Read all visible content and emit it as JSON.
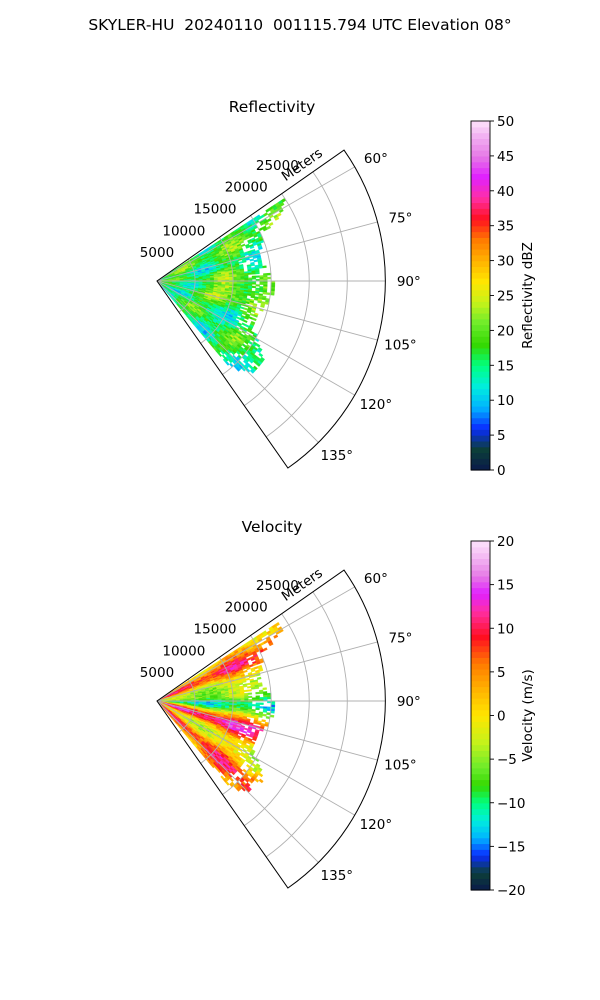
{
  "figure": {
    "suptitle": "SKYLER-HU  20240110  001115.794 UTC Elevation 08°",
    "colors": {
      "background": "#ffffff",
      "grid": "#b0b0b0",
      "frame": "#000000"
    }
  },
  "chart_data": [
    {
      "type": "heatmap",
      "title": "Reflectivity",
      "projection": "polar sector",
      "theta_label": "",
      "r_label": "Meters",
      "r_ticks": [
        5000,
        10000,
        15000,
        20000,
        25000
      ],
      "r_tick_labels": [
        "5000",
        "10000",
        "15000",
        "20000",
        "25000"
      ],
      "r_range": [
        0,
        30000
      ],
      "theta_ticks_deg": [
        60,
        75,
        90,
        105,
        120,
        135
      ],
      "theta_tick_labels": [
        "60°",
        "75°",
        "90°",
        "105°",
        "120°",
        "135°"
      ],
      "theta_range_deg": [
        55,
        145
      ],
      "data_azimuth_range_deg": [
        57,
        140
      ],
      "data_max_range_m": [
        [
          57,
          20000
        ],
        [
          62,
          18000
        ],
        [
          66,
          15000
        ],
        [
          72,
          14200
        ],
        [
          78,
          13500
        ],
        [
          84,
          14200
        ],
        [
          90,
          15000
        ],
        [
          96,
          15200
        ],
        [
          102,
          14600
        ],
        [
          108,
          13800
        ],
        [
          114,
          13600
        ],
        [
          120,
          15000
        ],
        [
          126,
          17000
        ],
        [
          132,
          17500
        ],
        [
          137,
          16000
        ],
        [
          140,
          14000
        ]
      ],
      "field_summary": "mostly 15–25 dBZ (green to yellow), higher 22–28 dBZ band near 90–105° at 8–13 km",
      "colorbar": {
        "label": "Reflectivity dBZ",
        "min": 0,
        "max": 50,
        "ticks": [
          0,
          5,
          10,
          15,
          20,
          25,
          30,
          35,
          40,
          45,
          50
        ],
        "tick_labels": [
          "0",
          "5",
          "10",
          "15",
          "20",
          "25",
          "30",
          "35",
          "40",
          "45",
          "50"
        ],
        "stops": [
          [
            0,
            "#0a1a4a"
          ],
          [
            3,
            "#0c3f38"
          ],
          [
            6,
            "#0a2cff"
          ],
          [
            9,
            "#00b4ff"
          ],
          [
            12,
            "#00eedd"
          ],
          [
            15,
            "#00ff80"
          ],
          [
            18,
            "#35d800"
          ],
          [
            21,
            "#6bec2b"
          ],
          [
            24,
            "#c6f21a"
          ],
          [
            27,
            "#ffe600"
          ],
          [
            30,
            "#ffb300"
          ],
          [
            33,
            "#ff7a00"
          ],
          [
            36,
            "#ff0f20"
          ],
          [
            39,
            "#ff2fa5"
          ],
          [
            42,
            "#e020ff"
          ],
          [
            45,
            "#e67ae6"
          ],
          [
            48,
            "#f2b4f2"
          ],
          [
            50,
            "#fde3fb"
          ]
        ]
      }
    },
    {
      "type": "heatmap",
      "title": "Velocity",
      "projection": "polar sector",
      "theta_label": "",
      "r_label": "Meters",
      "r_ticks": [
        5000,
        10000,
        15000,
        20000,
        25000
      ],
      "r_tick_labels": [
        "5000",
        "10000",
        "15000",
        "20000",
        "25000"
      ],
      "r_range": [
        0,
        30000
      ],
      "theta_ticks_deg": [
        60,
        75,
        90,
        105,
        120,
        135
      ],
      "theta_tick_labels": [
        "60°",
        "75°",
        "90°",
        "105°",
        "120°",
        "135°"
      ],
      "theta_range_deg": [
        55,
        145
      ],
      "data_azimuth_range_deg": [
        57,
        140
      ],
      "data_max_range_m": [
        [
          57,
          20000
        ],
        [
          62,
          18000
        ],
        [
          66,
          15000
        ],
        [
          72,
          14200
        ],
        [
          78,
          13500
        ],
        [
          84,
          14200
        ],
        [
          90,
          15000
        ],
        [
          96,
          15200
        ],
        [
          102,
          14600
        ],
        [
          108,
          13800
        ],
        [
          114,
          13600
        ],
        [
          120,
          15000
        ],
        [
          126,
          17000
        ],
        [
          132,
          17500
        ],
        [
          137,
          16000
        ],
        [
          140,
          14000
        ]
      ],
      "field_summary": "radial bands: about +10 m/s near 62–70°, near 0 to -5 m/s around 75–90°, about -10 m/s near 90–98°, +10 to +15 m/s near 105–112°, about -3 m/s near 115–125°, +10 m/s near 130–138°",
      "colorbar": {
        "label": "Velocity (m/s)",
        "min": -20,
        "max": 20,
        "ticks": [
          -20,
          -15,
          -10,
          -5,
          0,
          5,
          10,
          15,
          20
        ],
        "tick_labels": [
          "−20",
          "−15",
          "−10",
          "−5",
          "0",
          "5",
          "10",
          "15",
          "20"
        ],
        "stops": [
          [
            -20,
            "#0a1a4a"
          ],
          [
            -18,
            "#0c3f38"
          ],
          [
            -16,
            "#0a2cff"
          ],
          [
            -14,
            "#00b4ff"
          ],
          [
            -12,
            "#00eedd"
          ],
          [
            -10,
            "#00ff80"
          ],
          [
            -8,
            "#35d800"
          ],
          [
            -6,
            "#6bec2b"
          ],
          [
            -3,
            "#c6f21a"
          ],
          [
            0,
            "#ffe600"
          ],
          [
            3,
            "#ffb300"
          ],
          [
            6,
            "#ff7a00"
          ],
          [
            9,
            "#ff0f20"
          ],
          [
            12,
            "#ff2fa5"
          ],
          [
            14,
            "#e020ff"
          ],
          [
            16,
            "#e67ae6"
          ],
          [
            18,
            "#f2b4f2"
          ],
          [
            20,
            "#fde3fb"
          ]
        ]
      }
    }
  ]
}
